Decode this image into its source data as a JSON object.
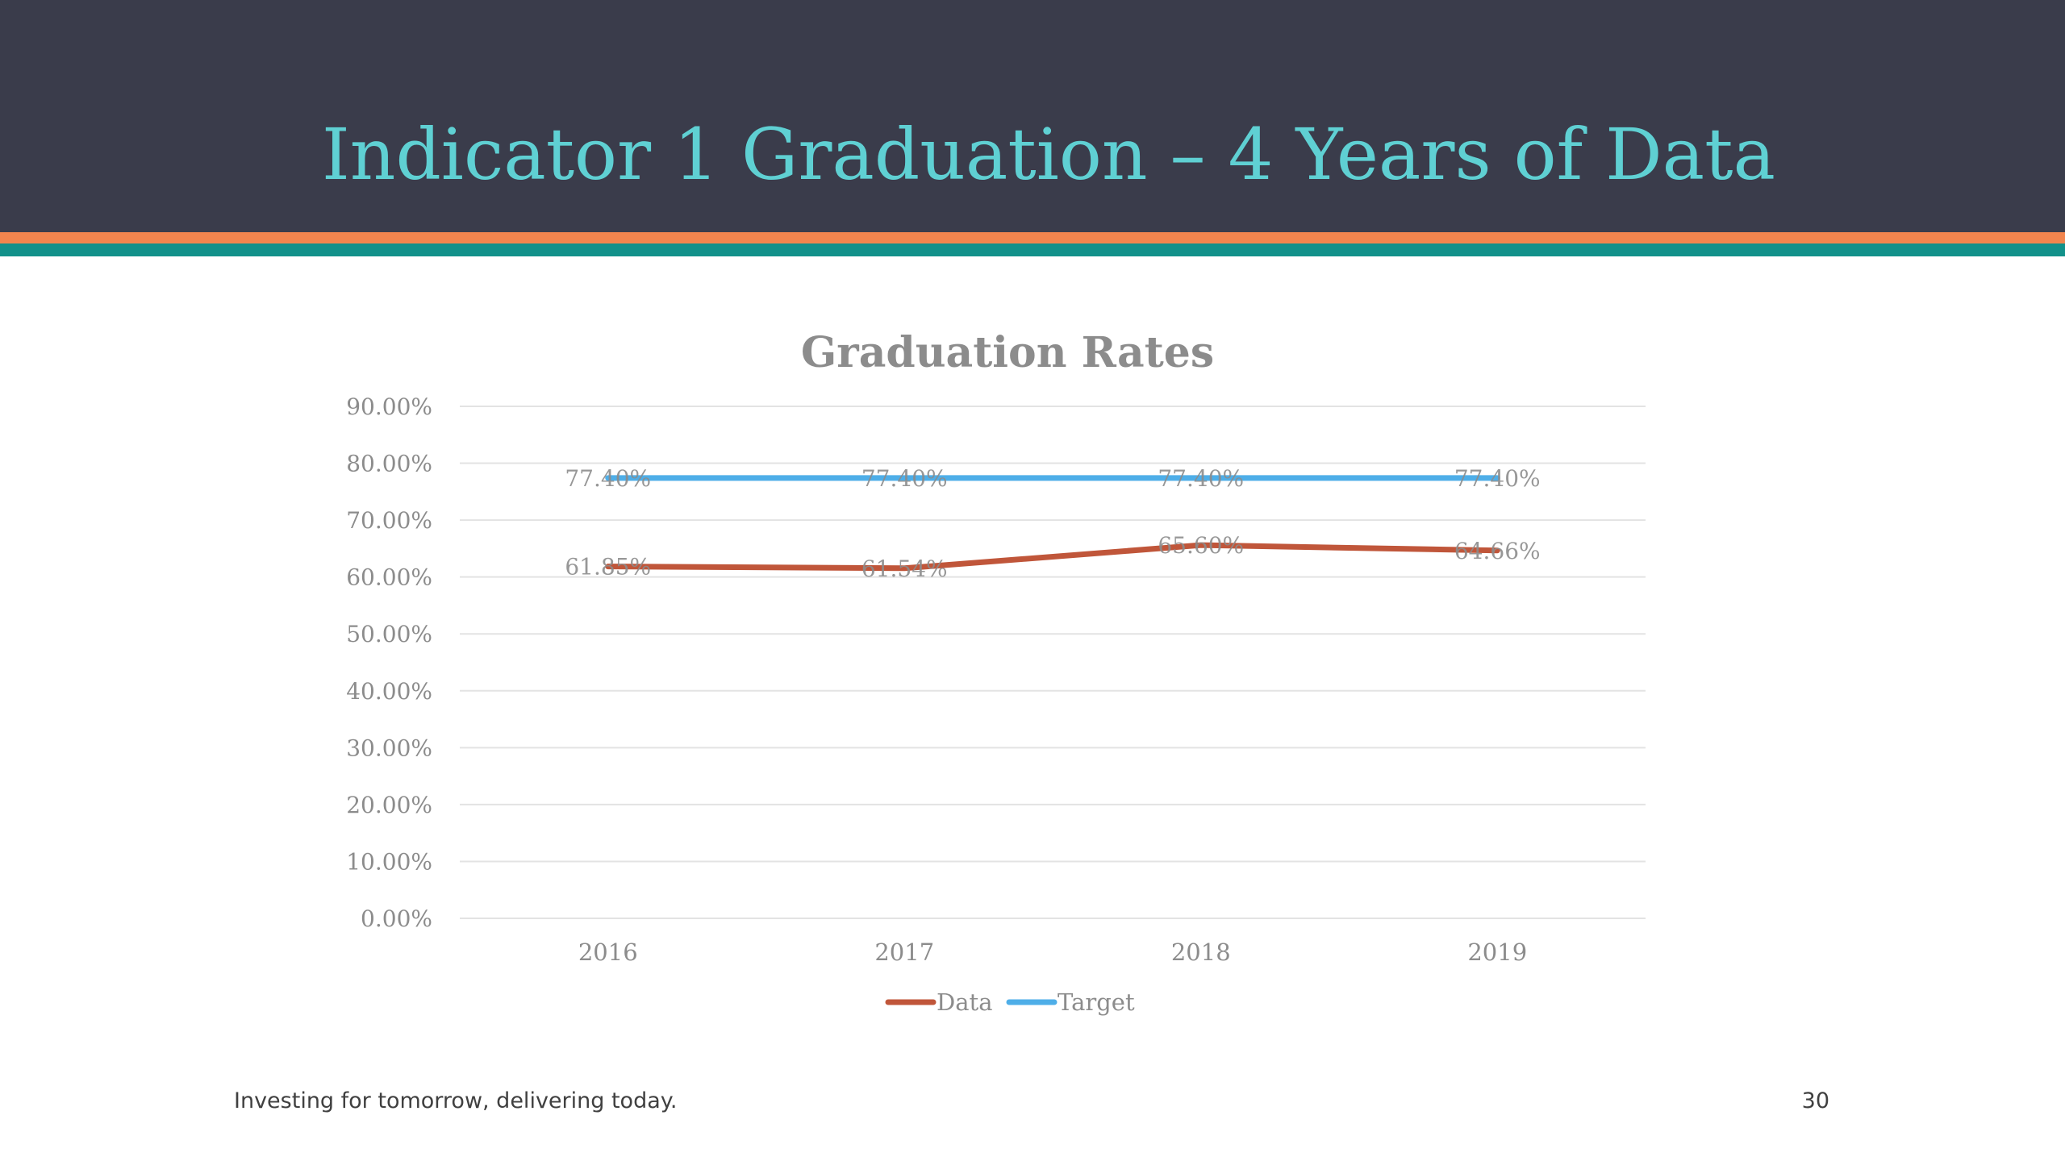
{
  "slide": {
    "title": "Indicator 1 Graduation – 4 Years of Data",
    "footer": "Investing for tomorrow, delivering today.",
    "page_number": "30",
    "colors": {
      "header_bg": "#3a3c4b",
      "title": "#5fd0d3",
      "stripe_orange": "#f2854e",
      "stripe_teal": "#12918a"
    }
  },
  "chart_data": {
    "type": "line",
    "title": "Graduation Rates",
    "categories": [
      "2016",
      "2017",
      "2018",
      "2019"
    ],
    "ylim": [
      0,
      90
    ],
    "yticks": [
      "0.00%",
      "10.00%",
      "20.00%",
      "30.00%",
      "40.00%",
      "50.00%",
      "60.00%",
      "70.00%",
      "80.00%",
      "90.00%"
    ],
    "grid": true,
    "legend_position": "bottom",
    "series": [
      {
        "name": "Data",
        "color": "#c0563a",
        "values": [
          61.85,
          61.54,
          65.6,
          64.66
        ],
        "labels": [
          "61.85%",
          "61.54%",
          "65.60%",
          "64.66%"
        ]
      },
      {
        "name": "Target",
        "color": "#4eaee8",
        "values": [
          77.4,
          77.4,
          77.4,
          77.4
        ],
        "labels": [
          "77.40%",
          "77.40%",
          "77.40%",
          "77.40%"
        ]
      }
    ]
  }
}
